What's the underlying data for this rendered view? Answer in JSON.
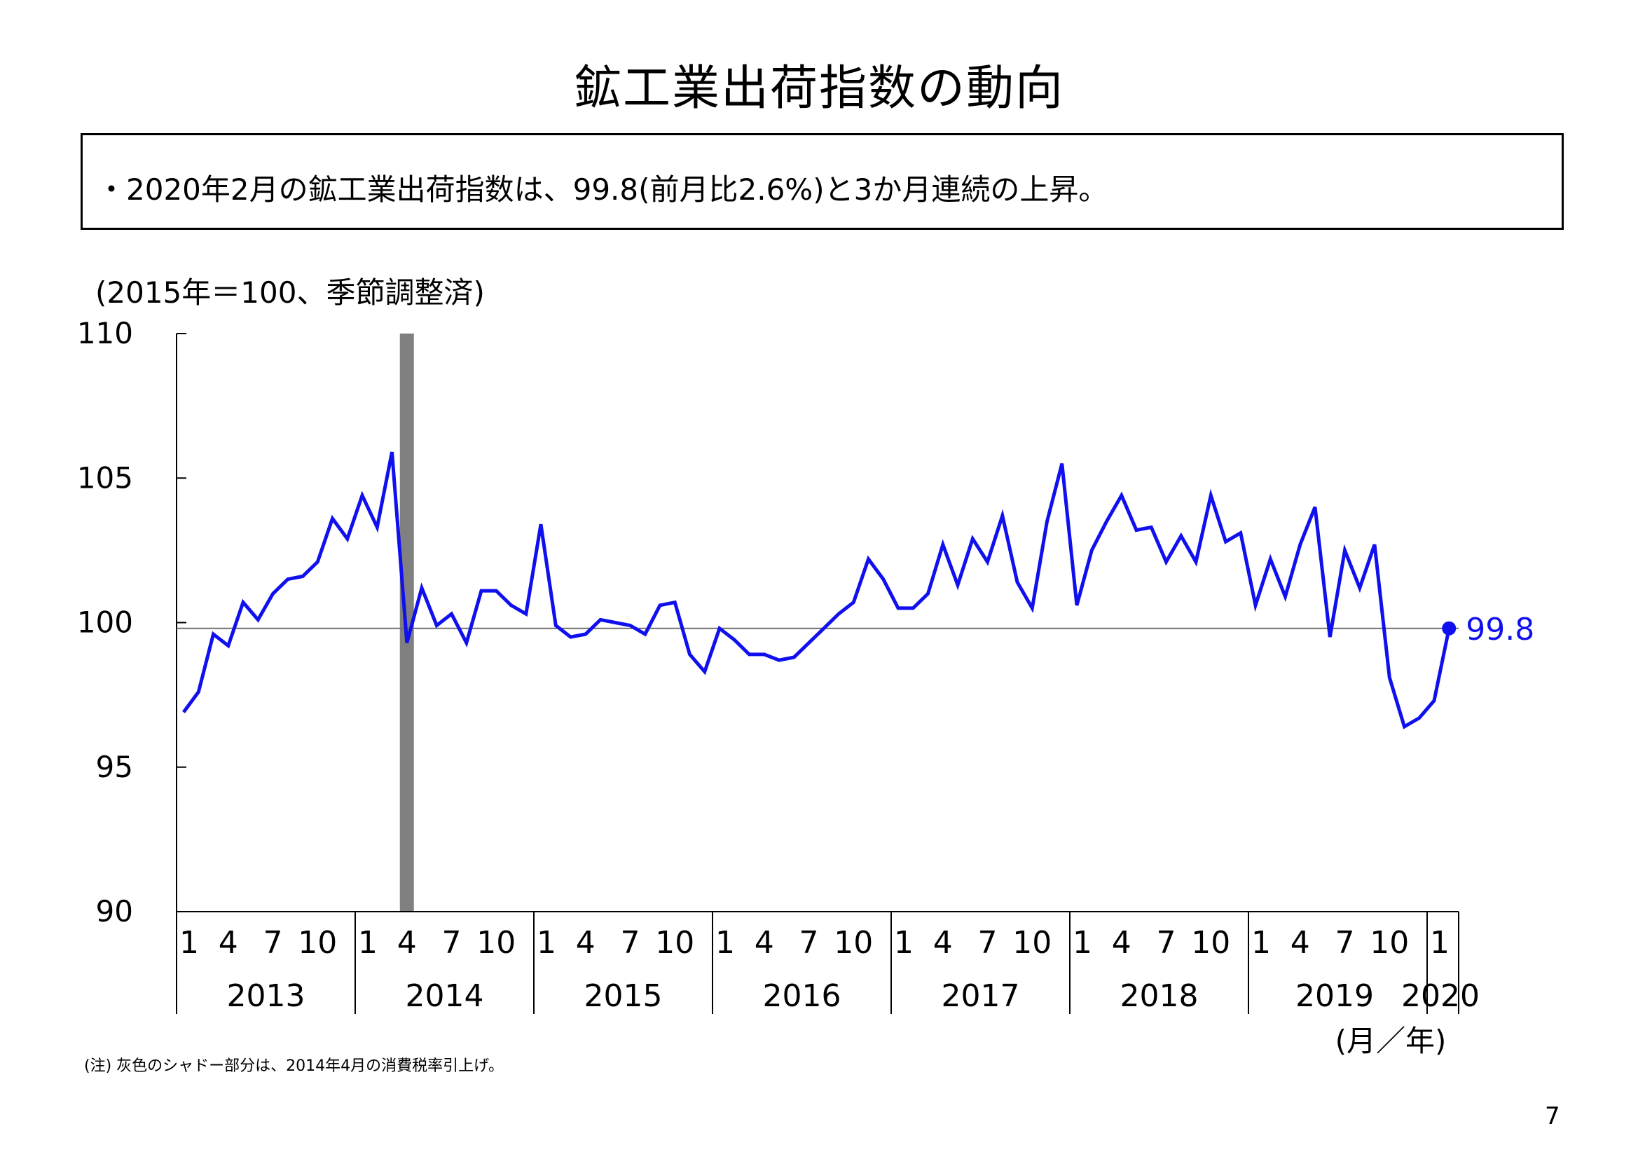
{
  "title": "鉱工業出荷指数の動向",
  "summary": "・2020年2月の鉱工業出荷指数は、99.8(前月比2.6%)と3か月連続の上昇。",
  "unit_label": "(2015年＝100、季節調整済)",
  "axis_unit_label": "(月／年)",
  "footnote": "(注) 灰色のシャドー部分は、2014年4月の消費税率引上げ。",
  "page_number": "7",
  "colors": {
    "line": "#1010ee",
    "shade": "#808080",
    "reference": "#707070",
    "axis": "#000000"
  },
  "chart_data": {
    "type": "line",
    "ylim": [
      90,
      110
    ],
    "yticks": [
      90,
      95,
      100,
      105,
      110
    ],
    "grid": false,
    "reference_line": 99.8,
    "shaded_period": "2014-04",
    "x_month_tick_labels": [
      "1",
      "4",
      "7",
      "10"
    ],
    "years": [
      "2013",
      "2014",
      "2015",
      "2016",
      "2017",
      "2018",
      "2019",
      "2020"
    ],
    "last_label": "99.8",
    "series": [
      {
        "start": "2013-01",
        "end": "2020-02",
        "values": [
          96.9,
          97.6,
          99.6,
          99.2,
          100.7,
          100.1,
          101.0,
          101.5,
          101.6,
          102.1,
          103.6,
          102.9,
          104.4,
          103.3,
          105.9,
          99.3,
          101.2,
          99.9,
          100.3,
          99.3,
          101.1,
          101.1,
          100.6,
          100.3,
          103.4,
          99.9,
          99.5,
          99.6,
          100.1,
          100.0,
          99.9,
          99.6,
          100.6,
          100.7,
          98.9,
          98.3,
          99.8,
          99.4,
          98.9,
          98.9,
          98.7,
          98.8,
          99.3,
          99.8,
          100.3,
          100.7,
          102.2,
          101.5,
          100.5,
          100.5,
          101.0,
          102.7,
          101.3,
          102.9,
          102.1,
          103.7,
          101.4,
          100.5,
          103.5,
          105.5,
          100.6,
          102.5,
          103.5,
          104.4,
          103.2,
          103.3,
          102.1,
          103.0,
          102.1,
          104.4,
          102.8,
          103.1,
          100.6,
          102.2,
          100.9,
          102.7,
          104.0,
          99.5,
          102.5,
          101.2,
          102.7,
          98.1,
          96.4,
          96.7,
          97.3,
          99.8
        ]
      }
    ]
  }
}
